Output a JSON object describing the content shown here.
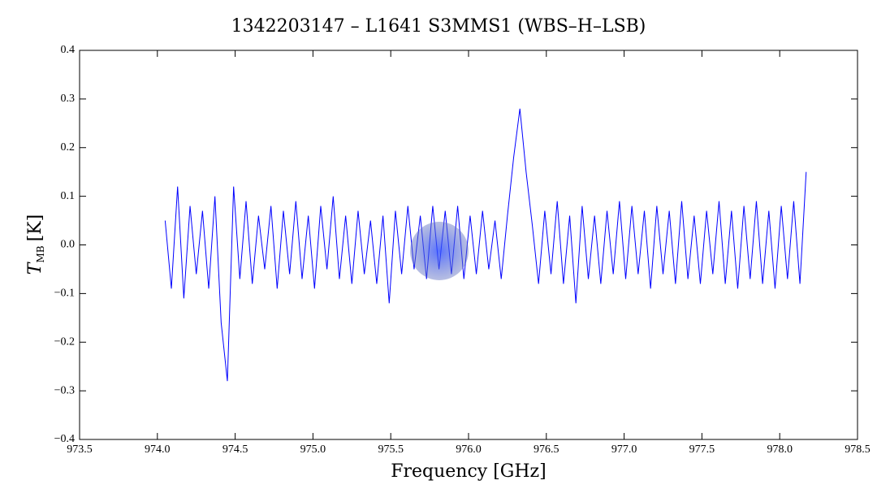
{
  "chart_data": {
    "type": "line",
    "title": "1342203147 – L1641 S3MMS1 (WBS–H–LSB)",
    "xlabel": "Frequency [GHz]",
    "ylabel": "T",
    "ylabel_sub": "MB",
    "ylabel_unit": "[K]",
    "xlim": [
      973.5,
      978.5
    ],
    "xticks": [
      973.5,
      {
        "value": 974,
        "label": "974.0"
      },
      974.5,
      {
        "value": 975,
        "label": "975.0"
      },
      975.5,
      {
        "value": 976,
        "label": "976.0"
      },
      976.5,
      {
        "value": 977,
        "label": "977.0"
      },
      977.5,
      {
        "value": 978,
        "label": "978.0"
      },
      978.5
    ],
    "ylim": [
      -0.4,
      0.4
    ],
    "yticks": [
      {
        "value": -0.4,
        "label": "−0.4"
      },
      {
        "value": -0.3,
        "label": "−0.3"
      },
      {
        "value": -0.2,
        "label": "−0.2"
      },
      {
        "value": -0.1,
        "label": "−0.1"
      },
      {
        "value": 0,
        "label": "0.0"
      },
      0.1,
      0.2,
      0.3,
      0.4
    ],
    "x": [
      974.05,
      974.09,
      974.13,
      974.17,
      974.21,
      974.25,
      974.29,
      974.33,
      974.37,
      974.41,
      974.45,
      974.49,
      974.53,
      974.57,
      974.61,
      974.65,
      974.69,
      974.73,
      974.77,
      974.81,
      974.85,
      974.89,
      974.93,
      974.97,
      975.01,
      975.05,
      975.09,
      975.13,
      975.17,
      975.21,
      975.25,
      975.29,
      975.33,
      975.37,
      975.41,
      975.45,
      975.49,
      975.53,
      975.57,
      975.61,
      975.65,
      975.69,
      975.73,
      975.77,
      975.81,
      975.85,
      975.89,
      975.93,
      975.97,
      976.01,
      976.05,
      976.09,
      976.13,
      976.17,
      976.21,
      976.25,
      976.29,
      976.33,
      976.37,
      976.41,
      976.45,
      976.49,
      976.53,
      976.57,
      976.61,
      976.65,
      976.69,
      976.73,
      976.77,
      976.81,
      976.85,
      976.89,
      976.93,
      976.97,
      977.01,
      977.05,
      977.09,
      977.13,
      977.17,
      977.21,
      977.25,
      977.29,
      977.33,
      977.37,
      977.41,
      977.45,
      977.49,
      977.53,
      977.57,
      977.61,
      977.65,
      977.69,
      977.73,
      977.77,
      977.81,
      977.85,
      977.89,
      977.93,
      977.97,
      978.01,
      978.05,
      978.09,
      978.13,
      978.17
    ],
    "series": [
      {
        "color": "#0000ff",
        "values": [
          0.05,
          -0.09,
          0.12,
          -0.11,
          0.08,
          -0.06,
          0.07,
          -0.09,
          0.1,
          -0.16,
          -0.28,
          0.12,
          -0.07,
          0.09,
          -0.08,
          0.06,
          -0.05,
          0.08,
          -0.09,
          0.07,
          -0.06,
          0.09,
          -0.07,
          0.06,
          -0.09,
          0.08,
          -0.05,
          0.1,
          -0.07,
          0.06,
          -0.08,
          0.07,
          -0.06,
          0.05,
          -0.08,
          0.06,
          -0.12,
          0.07,
          -0.06,
          0.08,
          -0.05,
          0.06,
          -0.07,
          0.08,
          -0.05,
          0.07,
          -0.06,
          0.08,
          -0.07,
          0.06,
          -0.06,
          0.07,
          -0.05,
          0.05,
          -0.07,
          0.06,
          0.18,
          0.28,
          0.15,
          0.04,
          -0.08,
          0.07,
          -0.06,
          0.09,
          -0.08,
          0.06,
          -0.12,
          0.08,
          -0.07,
          0.06,
          -0.08,
          0.07,
          -0.06,
          0.09,
          -0.07,
          0.08,
          -0.06,
          0.07,
          -0.09,
          0.08,
          -0.06,
          0.07,
          -0.08,
          0.09,
          -0.07,
          0.06,
          -0.08,
          0.07,
          -0.06,
          0.09,
          -0.08,
          0.07,
          -0.09,
          0.08,
          -0.07,
          0.09,
          -0.08,
          0.07,
          -0.09,
          0.08,
          -0.07,
          0.09,
          -0.08,
          0.15
        ]
      }
    ]
  }
}
